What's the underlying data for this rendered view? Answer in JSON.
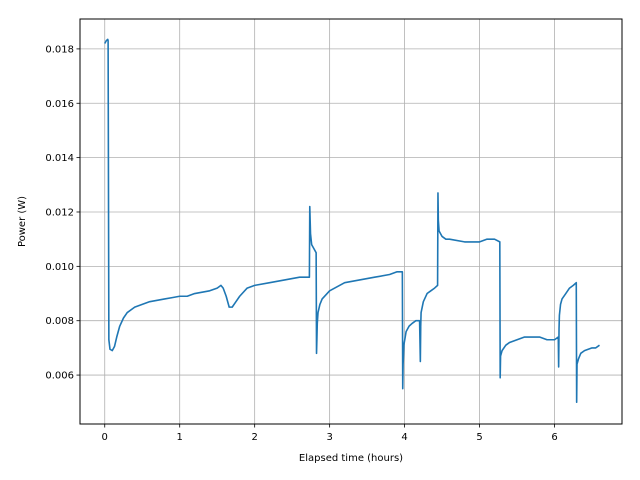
{
  "chart_data": {
    "type": "line",
    "title": "",
    "xlabel": "Elapsed time (hours)",
    "ylabel": "Power (W)",
    "xlim": [
      -0.33,
      6.9
    ],
    "ylim": [
      0.0042,
      0.0191
    ],
    "grid": true,
    "line_color": "#1f77b4",
    "xticks": [
      0,
      1,
      2,
      3,
      4,
      5,
      6
    ],
    "xtick_labels": [
      "0",
      "1",
      "2",
      "3",
      "4",
      "5",
      "6"
    ],
    "yticks": [
      0.006,
      0.008,
      0.01,
      0.012,
      0.014,
      0.016,
      0.018
    ],
    "ytick_labels": [
      "0.006",
      "0.008",
      "0.010",
      "0.012",
      "0.014",
      "0.016",
      "0.018"
    ],
    "series": [
      {
        "x": [
          0.0,
          0.02,
          0.04,
          0.045,
          0.055,
          0.07,
          0.1,
          0.13,
          0.16,
          0.2,
          0.25,
          0.3,
          0.4,
          0.5,
          0.6,
          0.7,
          0.8,
          0.9,
          1.0,
          1.1,
          1.2,
          1.3,
          1.4,
          1.5,
          1.55,
          1.58,
          1.62,
          1.66,
          1.7,
          1.75,
          1.8,
          1.9,
          2.0,
          2.2,
          2.4,
          2.6,
          2.73,
          2.735,
          2.745,
          2.76,
          2.8,
          2.82,
          2.825,
          2.83,
          2.835,
          2.845,
          2.87,
          2.9,
          3.0,
          3.2,
          3.4,
          3.6,
          3.8,
          3.9,
          3.97,
          3.975,
          3.98,
          3.99,
          4.02,
          4.06,
          4.1,
          4.15,
          4.2,
          4.21,
          4.215,
          4.22,
          4.25,
          4.3,
          4.35,
          4.4,
          4.44,
          4.445,
          4.45,
          4.46,
          4.48,
          4.5,
          4.55,
          4.6,
          4.8,
          5.0,
          5.1,
          5.2,
          5.27,
          5.275,
          5.28,
          5.3,
          5.35,
          5.4,
          5.5,
          5.6,
          5.7,
          5.8,
          5.9,
          6.0,
          6.05,
          6.055,
          6.06,
          6.065,
          6.08,
          6.1,
          6.15,
          6.2,
          6.25,
          6.29,
          6.295,
          6.3,
          6.32,
          6.35,
          6.4,
          6.5,
          6.55,
          6.6
        ],
        "y": [
          0.0182,
          0.0183,
          0.01835,
          0.0183,
          0.0073,
          0.00695,
          0.0069,
          0.00705,
          0.0074,
          0.0078,
          0.0081,
          0.0083,
          0.0085,
          0.0086,
          0.0087,
          0.00875,
          0.0088,
          0.00885,
          0.0089,
          0.0089,
          0.009,
          0.00905,
          0.0091,
          0.0092,
          0.0093,
          0.0092,
          0.0089,
          0.0085,
          0.0085,
          0.0087,
          0.0089,
          0.0092,
          0.0093,
          0.0094,
          0.0095,
          0.0096,
          0.0096,
          0.0122,
          0.0112,
          0.0108,
          0.0106,
          0.0105,
          0.0068,
          0.0073,
          0.0079,
          0.0083,
          0.0086,
          0.0088,
          0.0091,
          0.0094,
          0.0095,
          0.0096,
          0.0097,
          0.0098,
          0.0098,
          0.0055,
          0.0064,
          0.0071,
          0.0076,
          0.0078,
          0.0079,
          0.008,
          0.008,
          0.0065,
          0.0078,
          0.0083,
          0.0087,
          0.009,
          0.0091,
          0.0092,
          0.0093,
          0.0127,
          0.0117,
          0.0113,
          0.0112,
          0.0111,
          0.011,
          0.011,
          0.0109,
          0.0109,
          0.011,
          0.011,
          0.0109,
          0.0059,
          0.0067,
          0.0069,
          0.0071,
          0.0072,
          0.0073,
          0.0074,
          0.0074,
          0.0074,
          0.0073,
          0.0073,
          0.0074,
          0.0063,
          0.0077,
          0.0082,
          0.0086,
          0.0088,
          0.009,
          0.0092,
          0.0093,
          0.0094,
          0.005,
          0.0064,
          0.0066,
          0.0068,
          0.0069,
          0.007,
          0.007,
          0.0071
        ]
      }
    ]
  }
}
